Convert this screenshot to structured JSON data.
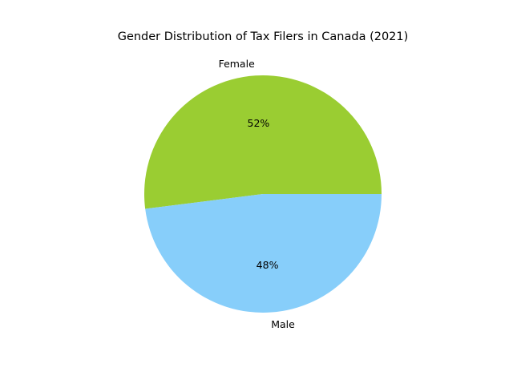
{
  "chart_data": {
    "type": "pie",
    "title": "Gender Distribution of Tax Filers in Canada (2021)",
    "labels": [
      "Female",
      "Male"
    ],
    "values": [
      52,
      48
    ],
    "value_labels": [
      "52%",
      "48%"
    ],
    "colors": [
      "#9acd32",
      "#87cefa"
    ],
    "start_angle_deg": 0,
    "direction": "counterclockwise",
    "legend": "none"
  }
}
